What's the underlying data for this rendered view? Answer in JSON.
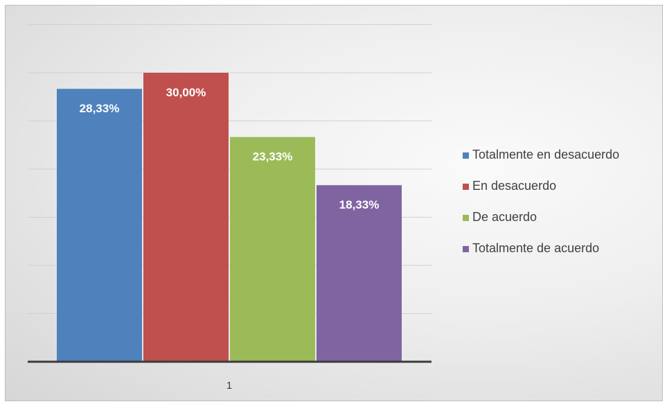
{
  "chart_data": {
    "type": "bar",
    "categories": [
      "1"
    ],
    "series": [
      {
        "name": "Totalmente en desacuerdo",
        "values": [
          28.33
        ],
        "label": "28,33%",
        "color": "#4f81bd"
      },
      {
        "name": "En desacuerdo",
        "values": [
          30.0
        ],
        "label": "30,00%",
        "color": "#c0504d"
      },
      {
        "name": "De acuerdo",
        "values": [
          23.33
        ],
        "label": "23,33%",
        "color": "#9bbb59"
      },
      {
        "name": "Totalmente de acuerdo",
        "values": [
          18.33
        ],
        "label": "18,33%",
        "color": "#8064a2"
      }
    ],
    "title": "",
    "xlabel": "",
    "ylabel": "",
    "ylim": [
      0,
      35
    ],
    "y_tick_step": 5,
    "y_tick_labels_shown": false,
    "grid": true,
    "legend_position": "right"
  }
}
